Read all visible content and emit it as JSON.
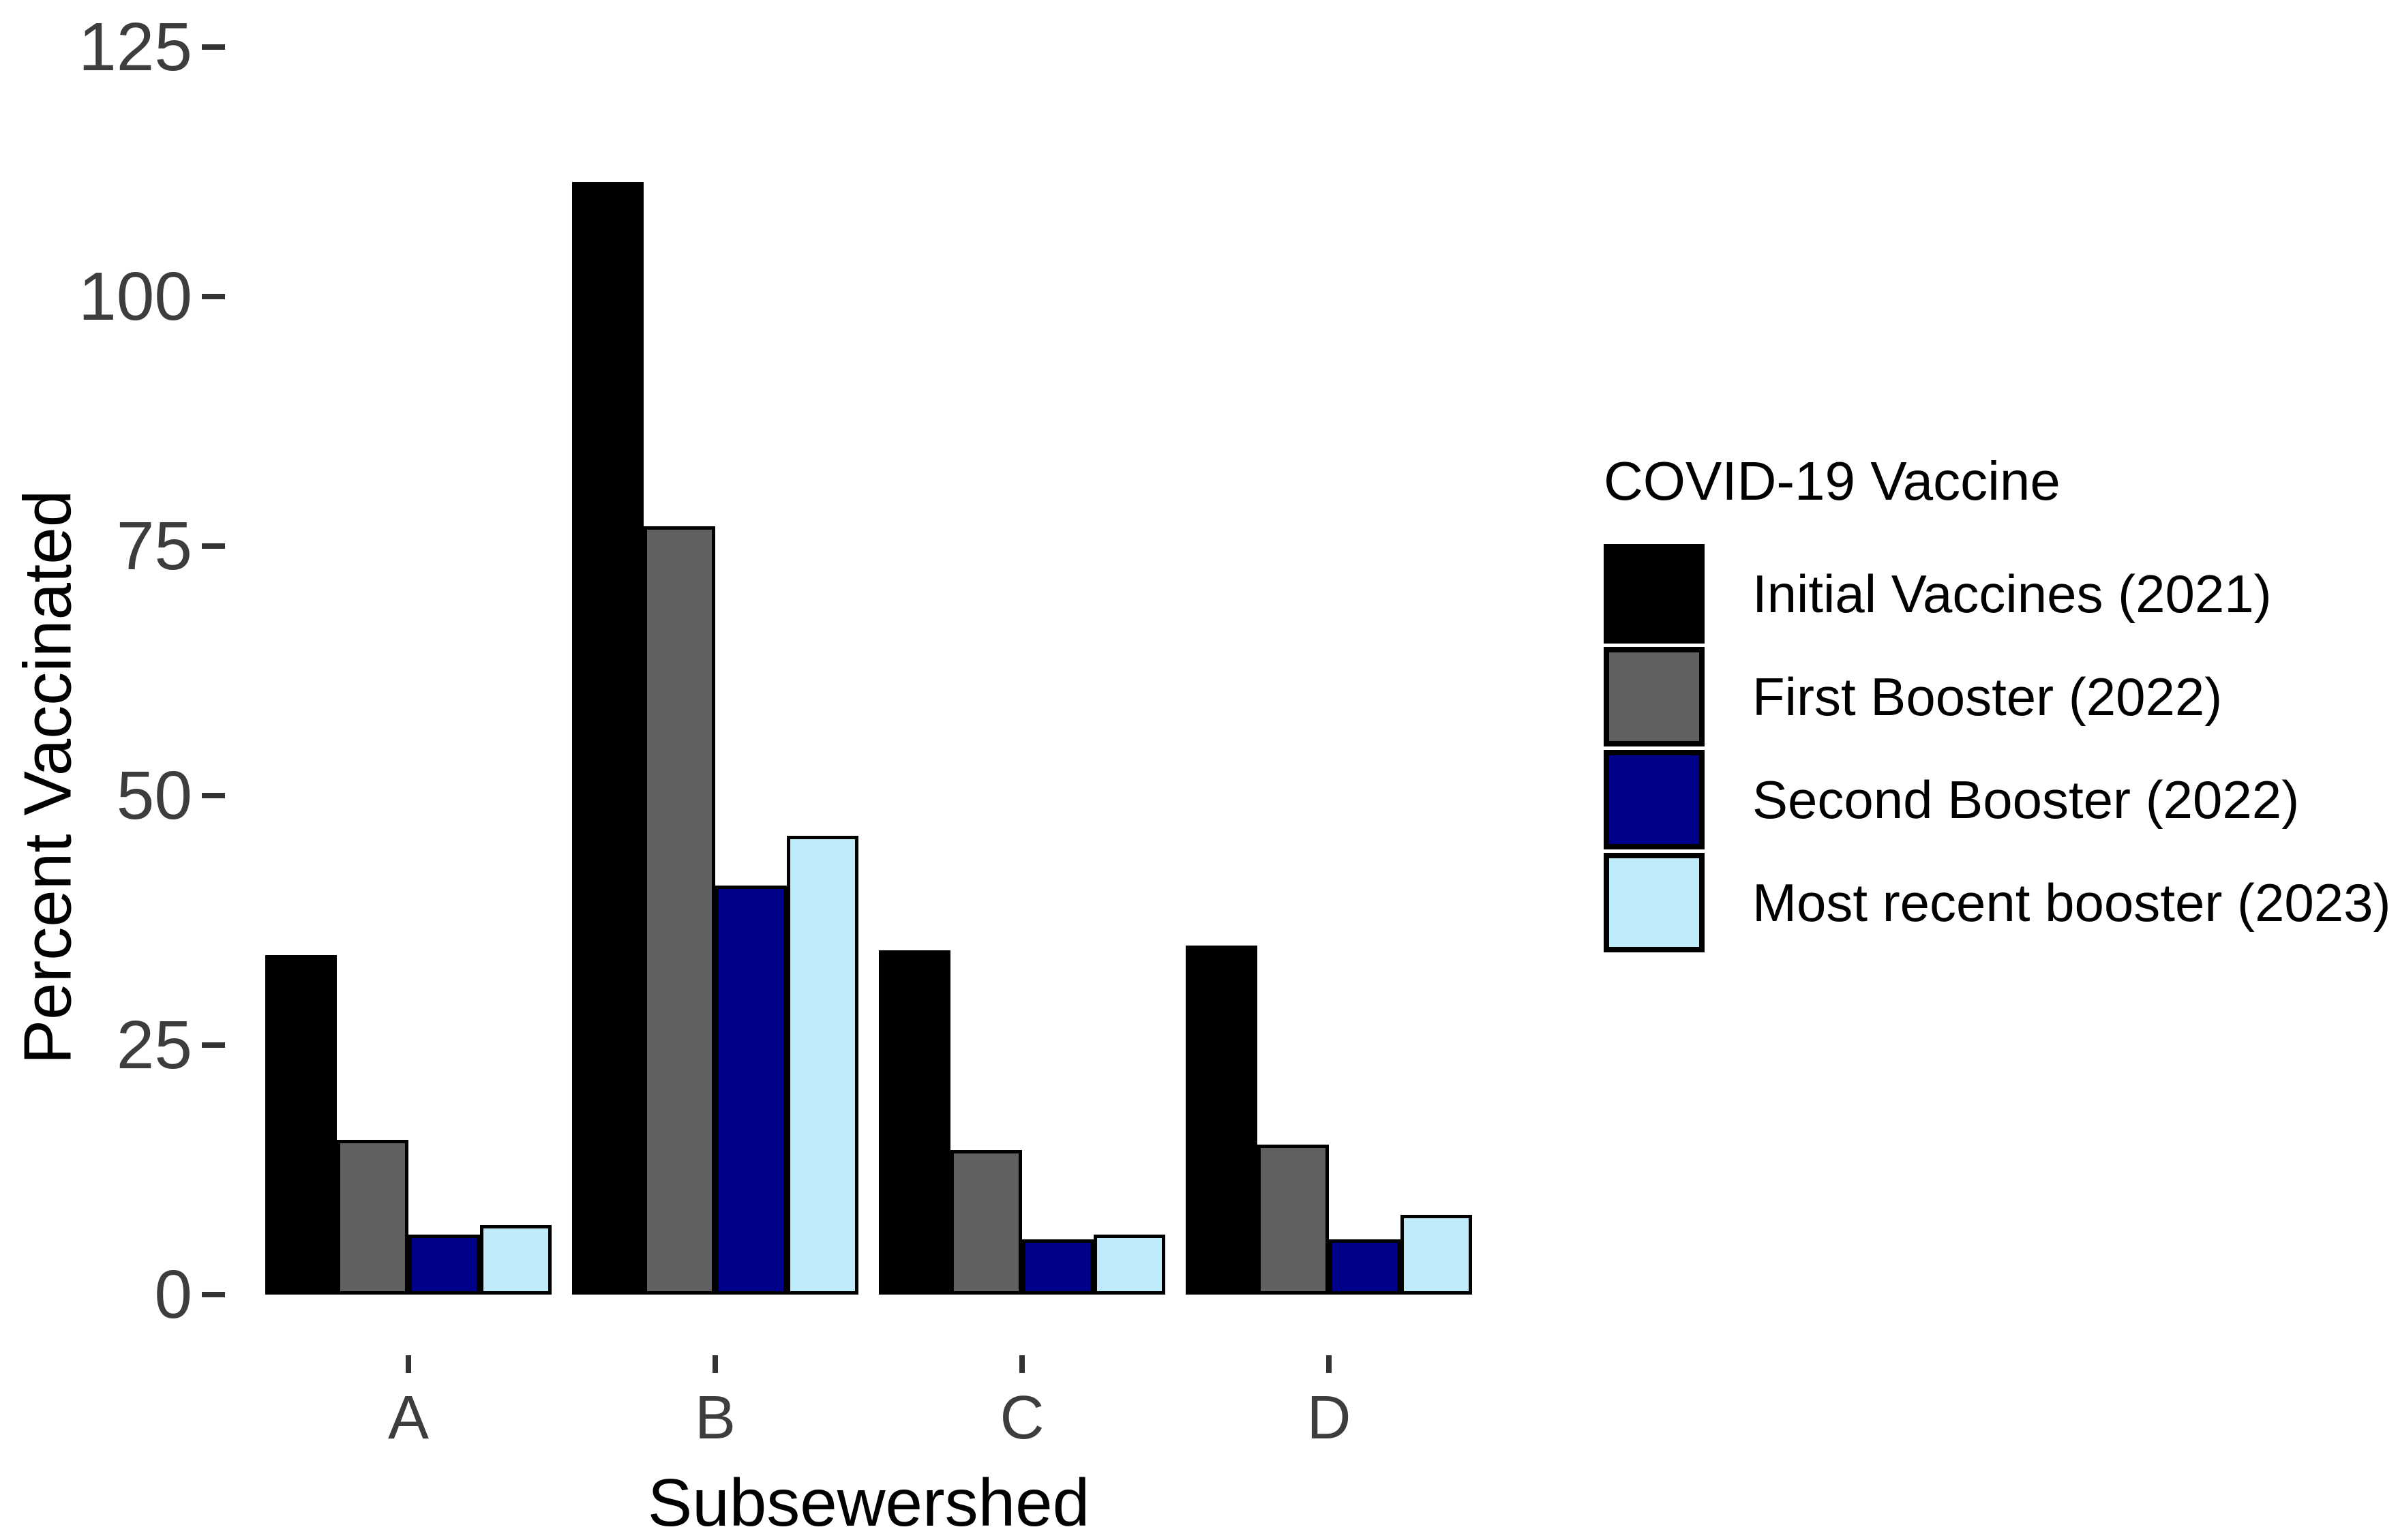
{
  "chart_data": {
    "type": "bar",
    "title": "",
    "xlabel": "Subsewershed",
    "ylabel": "Percent Vaccinated",
    "categories": [
      "A",
      "B",
      "C",
      "D"
    ],
    "series": [
      {
        "name": "Initial Vaccines (2021)",
        "color": "#000000",
        "values": [
          34,
          111.5,
          34.5,
          35
        ]
      },
      {
        "name": "First Booster (2022)",
        "color": "#616161",
        "values": [
          15.5,
          77,
          14.5,
          15
        ]
      },
      {
        "name": "Second Booster (2022)",
        "color": "#00008B",
        "values": [
          6,
          41,
          5.5,
          5.5
        ]
      },
      {
        "name": "Most recent booster (2023)",
        "color": "#BEEBFA",
        "values": [
          7,
          46,
          6,
          8
        ]
      }
    ],
    "ylim": [
      0,
      125
    ],
    "yticks": [
      0,
      25,
      50,
      75,
      100,
      125
    ],
    "grid": false,
    "bar_outline_color": "#000000",
    "axis_tick_color": "#333333",
    "legend": {
      "title": "COVID-19 Vaccine",
      "position": "right"
    }
  }
}
